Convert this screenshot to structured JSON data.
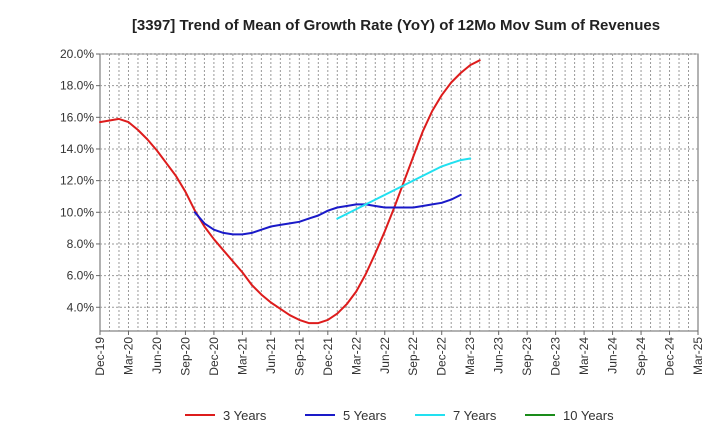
{
  "chart_data": {
    "type": "line",
    "title": "[3397]  Trend of Mean of Growth Rate (YoY) of 12Mo Mov Sum of Revenues",
    "xlabel": "",
    "ylabel": "",
    "x_ticks": [
      "Dec-19",
      "Mar-20",
      "Jun-20",
      "Sep-20",
      "Dec-20",
      "Mar-21",
      "Jun-21",
      "Sep-21",
      "Dec-21",
      "Mar-22",
      "Jun-22",
      "Sep-22",
      "Dec-22",
      "Mar-23",
      "Jun-23",
      "Sep-23",
      "Dec-23",
      "Mar-24",
      "Jun-24",
      "Sep-24",
      "Dec-24",
      "Mar-25"
    ],
    "y_ticks": [
      "4.0%",
      "6.0%",
      "8.0%",
      "10.0%",
      "12.0%",
      "14.0%",
      "16.0%",
      "18.0%",
      "20.0%"
    ],
    "ylim": [
      2.5,
      20.0
    ],
    "grid": true,
    "legend_position": "bottom",
    "series": [
      {
        "name": "3 Years",
        "color": "#dd1c1c",
        "values": [
          15.7,
          15.8,
          15.9,
          15.7,
          15.2,
          14.6,
          13.9,
          13.1,
          12.3,
          11.3,
          10.1,
          9.1,
          8.3,
          7.6,
          6.9,
          6.2,
          5.4,
          4.8,
          4.3,
          3.9,
          3.5,
          3.2,
          3.0,
          3.0,
          3.2,
          3.6,
          4.2,
          5.0,
          6.1,
          7.4,
          8.8,
          10.3,
          11.9,
          13.5,
          15.1,
          16.4,
          17.4,
          18.2,
          18.8,
          19.3,
          19.6
        ]
      },
      {
        "name": "5 Years",
        "color": "#1a1ac8",
        "values": [
          null,
          null,
          null,
          null,
          null,
          null,
          null,
          null,
          null,
          null,
          10.0,
          9.3,
          8.9,
          8.7,
          8.6,
          8.6,
          8.7,
          8.9,
          9.1,
          9.2,
          9.3,
          9.4,
          9.6,
          9.8,
          10.1,
          10.3,
          10.4,
          10.5,
          10.5,
          10.4,
          10.3,
          10.3,
          10.3,
          10.3,
          10.4,
          10.5,
          10.6,
          10.8,
          11.1,
          null,
          null
        ]
      },
      {
        "name": "7 Years",
        "color": "#22e0f0",
        "values": [
          null,
          null,
          null,
          null,
          null,
          null,
          null,
          null,
          null,
          null,
          null,
          null,
          null,
          null,
          null,
          null,
          null,
          null,
          null,
          null,
          null,
          null,
          null,
          null,
          null,
          9.6,
          9.9,
          10.2,
          10.5,
          10.8,
          11.1,
          11.4,
          11.7,
          12.0,
          12.3,
          12.6,
          12.9,
          13.1,
          13.3,
          13.4,
          null
        ]
      },
      {
        "name": "10 Years",
        "color": "#1a8c1a",
        "values": []
      }
    ]
  }
}
